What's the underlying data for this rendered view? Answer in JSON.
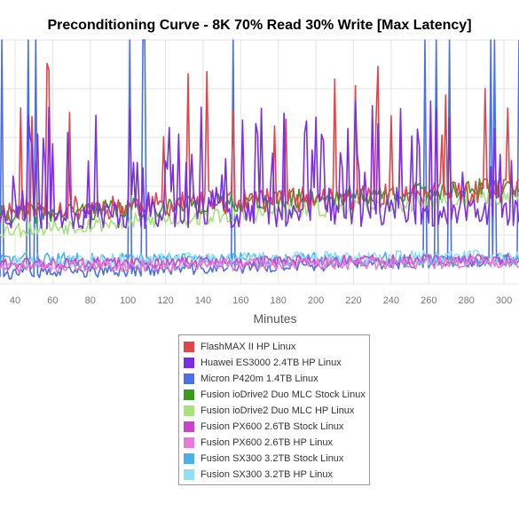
{
  "chart_data": {
    "type": "line",
    "title": "Preconditioning Curve - 8K 70% Read 30% Write [Max Latency]",
    "xlabel": "Minutes",
    "ylabel": "",
    "xlim": [
      32,
      308
    ],
    "x_ticks": [
      "40",
      "60",
      "80",
      "100",
      "120",
      "140",
      "160",
      "180",
      "200",
      "220",
      "240",
      "260",
      "280",
      "300"
    ],
    "grid": true,
    "legend_position": "bottom",
    "series": [
      {
        "name": "FlashMAX II HP Linux",
        "color": "#e0454a",
        "base_start": 0.3,
        "base_end": 0.38,
        "noise": 0.05,
        "spike_rate": 0.06,
        "spike_min": 0.6,
        "seed": 11
      },
      {
        "name": "Huawei ES3000 2.4TB HP Linux",
        "color": "#7a2ee8",
        "base_start": 0.28,
        "base_end": 0.3,
        "noise": 0.06,
        "spike_rate": 0.3,
        "spike_min": 0.35,
        "seed": 23
      },
      {
        "name": "Micron P420m 1.4TB Linux",
        "color": "#4a6fe8",
        "base_start": 0.04,
        "base_end": 0.1,
        "noise": 0.025,
        "spike_rate": 0.05,
        "spike_min": 1.2,
        "seed": 37
      },
      {
        "name": "Fusion ioDrive2 Duo MLC Stock Linux",
        "color": "#3c9a1e",
        "base_start": 0.28,
        "base_end": 0.4,
        "noise": 0.04,
        "spike_rate": 0.0,
        "spike_min": 0,
        "seed": 41
      },
      {
        "name": "Fusion ioDrive2 Duo MLC HP Linux",
        "color": "#a8e27a",
        "base_start": 0.22,
        "base_end": 0.36,
        "noise": 0.035,
        "spike_rate": 0.0,
        "spike_min": 0,
        "seed": 53
      },
      {
        "name": "Fusion PX600 2.6TB Stock Linux",
        "color": "#cc44cc",
        "base_start": 0.08,
        "base_end": 0.1,
        "noise": 0.025,
        "spike_rate": 0.0,
        "spike_min": 0,
        "seed": 61
      },
      {
        "name": "Fusion PX600 2.6TB HP Linux",
        "color": "#e87ad8",
        "base_start": 0.07,
        "base_end": 0.09,
        "noise": 0.025,
        "spike_rate": 0.0,
        "spike_min": 0,
        "seed": 71
      },
      {
        "name": "Fusion SX300 3.2TB Stock Linux",
        "color": "#4ab0e8",
        "base_start": 0.1,
        "base_end": 0.1,
        "noise": 0.03,
        "spike_rate": 0.0,
        "spike_min": 0,
        "seed": 83
      },
      {
        "name": "Fusion SX300 3.2TB HP Linux",
        "color": "#8fe0f5",
        "base_start": 0.09,
        "base_end": 0.11,
        "noise": 0.03,
        "spike_rate": 0.0,
        "spike_min": 0,
        "seed": 97
      }
    ]
  }
}
